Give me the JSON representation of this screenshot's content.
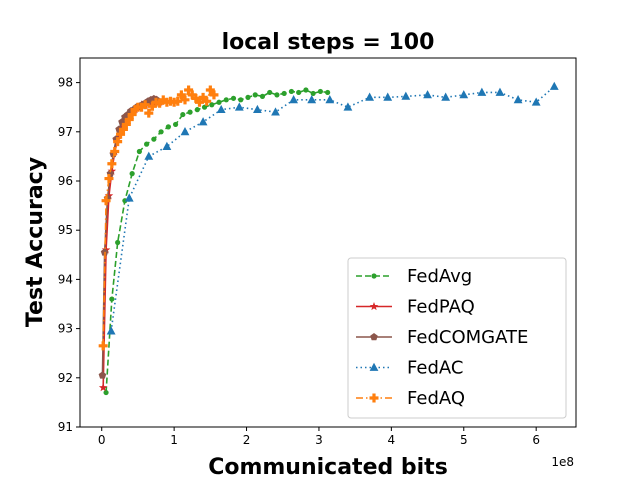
{
  "chart_data": {
    "type": "line",
    "title": "local steps = 100",
    "xlabel": "Communicated bits",
    "ylabel": "Test Accuracy",
    "x_offset_label": "1e8",
    "x_scale": 100000000,
    "xlim": [
      -0.3,
      6.55
    ],
    "ylim": [
      91,
      98.5
    ],
    "xticks": [
      0,
      1,
      2,
      3,
      4,
      5,
      6
    ],
    "yticks": [
      91,
      92,
      93,
      94,
      95,
      96,
      97,
      98
    ],
    "grid": false,
    "legend_position": "lower-right",
    "series": [
      {
        "name": "FedAvg",
        "color": "#2ca02c",
        "linestyle": "dashed",
        "marker": "dot",
        "x": [
          0.06,
          0.14,
          0.22,
          0.32,
          0.42,
          0.52,
          0.62,
          0.72,
          0.82,
          0.92,
          1.02,
          1.12,
          1.22,
          1.32,
          1.42,
          1.52,
          1.62,
          1.72,
          1.82,
          1.92,
          2.02,
          2.12,
          2.22,
          2.32,
          2.42,
          2.52,
          2.62,
          2.72,
          2.82,
          2.92,
          3.02,
          3.12
        ],
        "y": [
          91.7,
          93.6,
          94.75,
          95.6,
          96.15,
          96.6,
          96.75,
          96.85,
          97.0,
          97.1,
          97.15,
          97.35,
          97.4,
          97.45,
          97.5,
          97.55,
          97.6,
          97.65,
          97.68,
          97.65,
          97.7,
          97.75,
          97.72,
          97.8,
          97.75,
          97.78,
          97.82,
          97.8,
          97.85,
          97.78,
          97.82,
          97.8
        ]
      },
      {
        "name": "FedPAQ",
        "color": "#d62728",
        "linestyle": "solid",
        "marker": "star",
        "x": [
          0.02,
          0.06,
          0.1,
          0.14,
          0.18,
          0.22,
          0.26,
          0.3,
          0.34,
          0.38,
          0.42,
          0.46,
          0.5,
          0.55,
          0.6,
          0.65,
          0.7,
          0.75,
          0.8
        ],
        "y": [
          91.8,
          94.6,
          95.7,
          96.2,
          96.6,
          96.85,
          97.05,
          97.2,
          97.3,
          97.35,
          97.4,
          97.45,
          97.5,
          97.55,
          97.55,
          97.6,
          97.6,
          97.65,
          97.6
        ]
      },
      {
        "name": "FedCOMGATE",
        "color": "#8c564b",
        "linestyle": "solid",
        "marker": "pentagon",
        "x": [
          0.01,
          0.04,
          0.08,
          0.12,
          0.16,
          0.2,
          0.24,
          0.28,
          0.32,
          0.36,
          0.4,
          0.44,
          0.48,
          0.52,
          0.56,
          0.6,
          0.64,
          0.68,
          0.72,
          0.76
        ],
        "y": [
          92.05,
          94.55,
          95.65,
          96.15,
          96.55,
          96.85,
          97.05,
          97.2,
          97.3,
          97.35,
          97.42,
          97.45,
          97.5,
          97.52,
          97.55,
          97.58,
          97.62,
          97.65,
          97.67,
          97.65
        ]
      },
      {
        "name": "FedAC",
        "color": "#1f77b4",
        "linestyle": "dotted",
        "marker": "triangle",
        "x": [
          0.13,
          0.38,
          0.65,
          0.9,
          1.15,
          1.4,
          1.65,
          1.9,
          2.15,
          2.4,
          2.65,
          2.9,
          3.15,
          3.4,
          3.7,
          3.95,
          4.2,
          4.5,
          4.75,
          5.0,
          5.25,
          5.5,
          5.75,
          6.0,
          6.25
        ],
        "y": [
          92.95,
          95.65,
          96.5,
          96.7,
          97.0,
          97.2,
          97.45,
          97.5,
          97.45,
          97.4,
          97.65,
          97.65,
          97.65,
          97.5,
          97.7,
          97.7,
          97.72,
          97.75,
          97.7,
          97.75,
          97.8,
          97.8,
          97.65,
          97.6,
          97.92
        ]
      },
      {
        "name": "FedAQ",
        "color": "#ff7f0e",
        "linestyle": "dashdot",
        "marker": "plus",
        "x": [
          0.02,
          0.06,
          0.1,
          0.14,
          0.18,
          0.22,
          0.26,
          0.3,
          0.34,
          0.38,
          0.42,
          0.46,
          0.5,
          0.55,
          0.6,
          0.65,
          0.7,
          0.75,
          0.8,
          0.85,
          0.9,
          0.95,
          1.0,
          1.05,
          1.1,
          1.15,
          1.2,
          1.25,
          1.3,
          1.35,
          1.4,
          1.45,
          1.5,
          1.55
        ],
        "y": [
          92.65,
          95.6,
          96.05,
          96.35,
          96.6,
          96.8,
          96.95,
          97.05,
          97.15,
          97.25,
          97.35,
          97.45,
          97.5,
          97.5,
          97.55,
          97.38,
          97.52,
          97.6,
          97.58,
          97.65,
          97.6,
          97.62,
          97.6,
          97.62,
          97.75,
          97.65,
          97.85,
          97.75,
          97.68,
          97.6,
          97.7,
          97.62,
          97.85,
          97.75
        ]
      }
    ]
  }
}
